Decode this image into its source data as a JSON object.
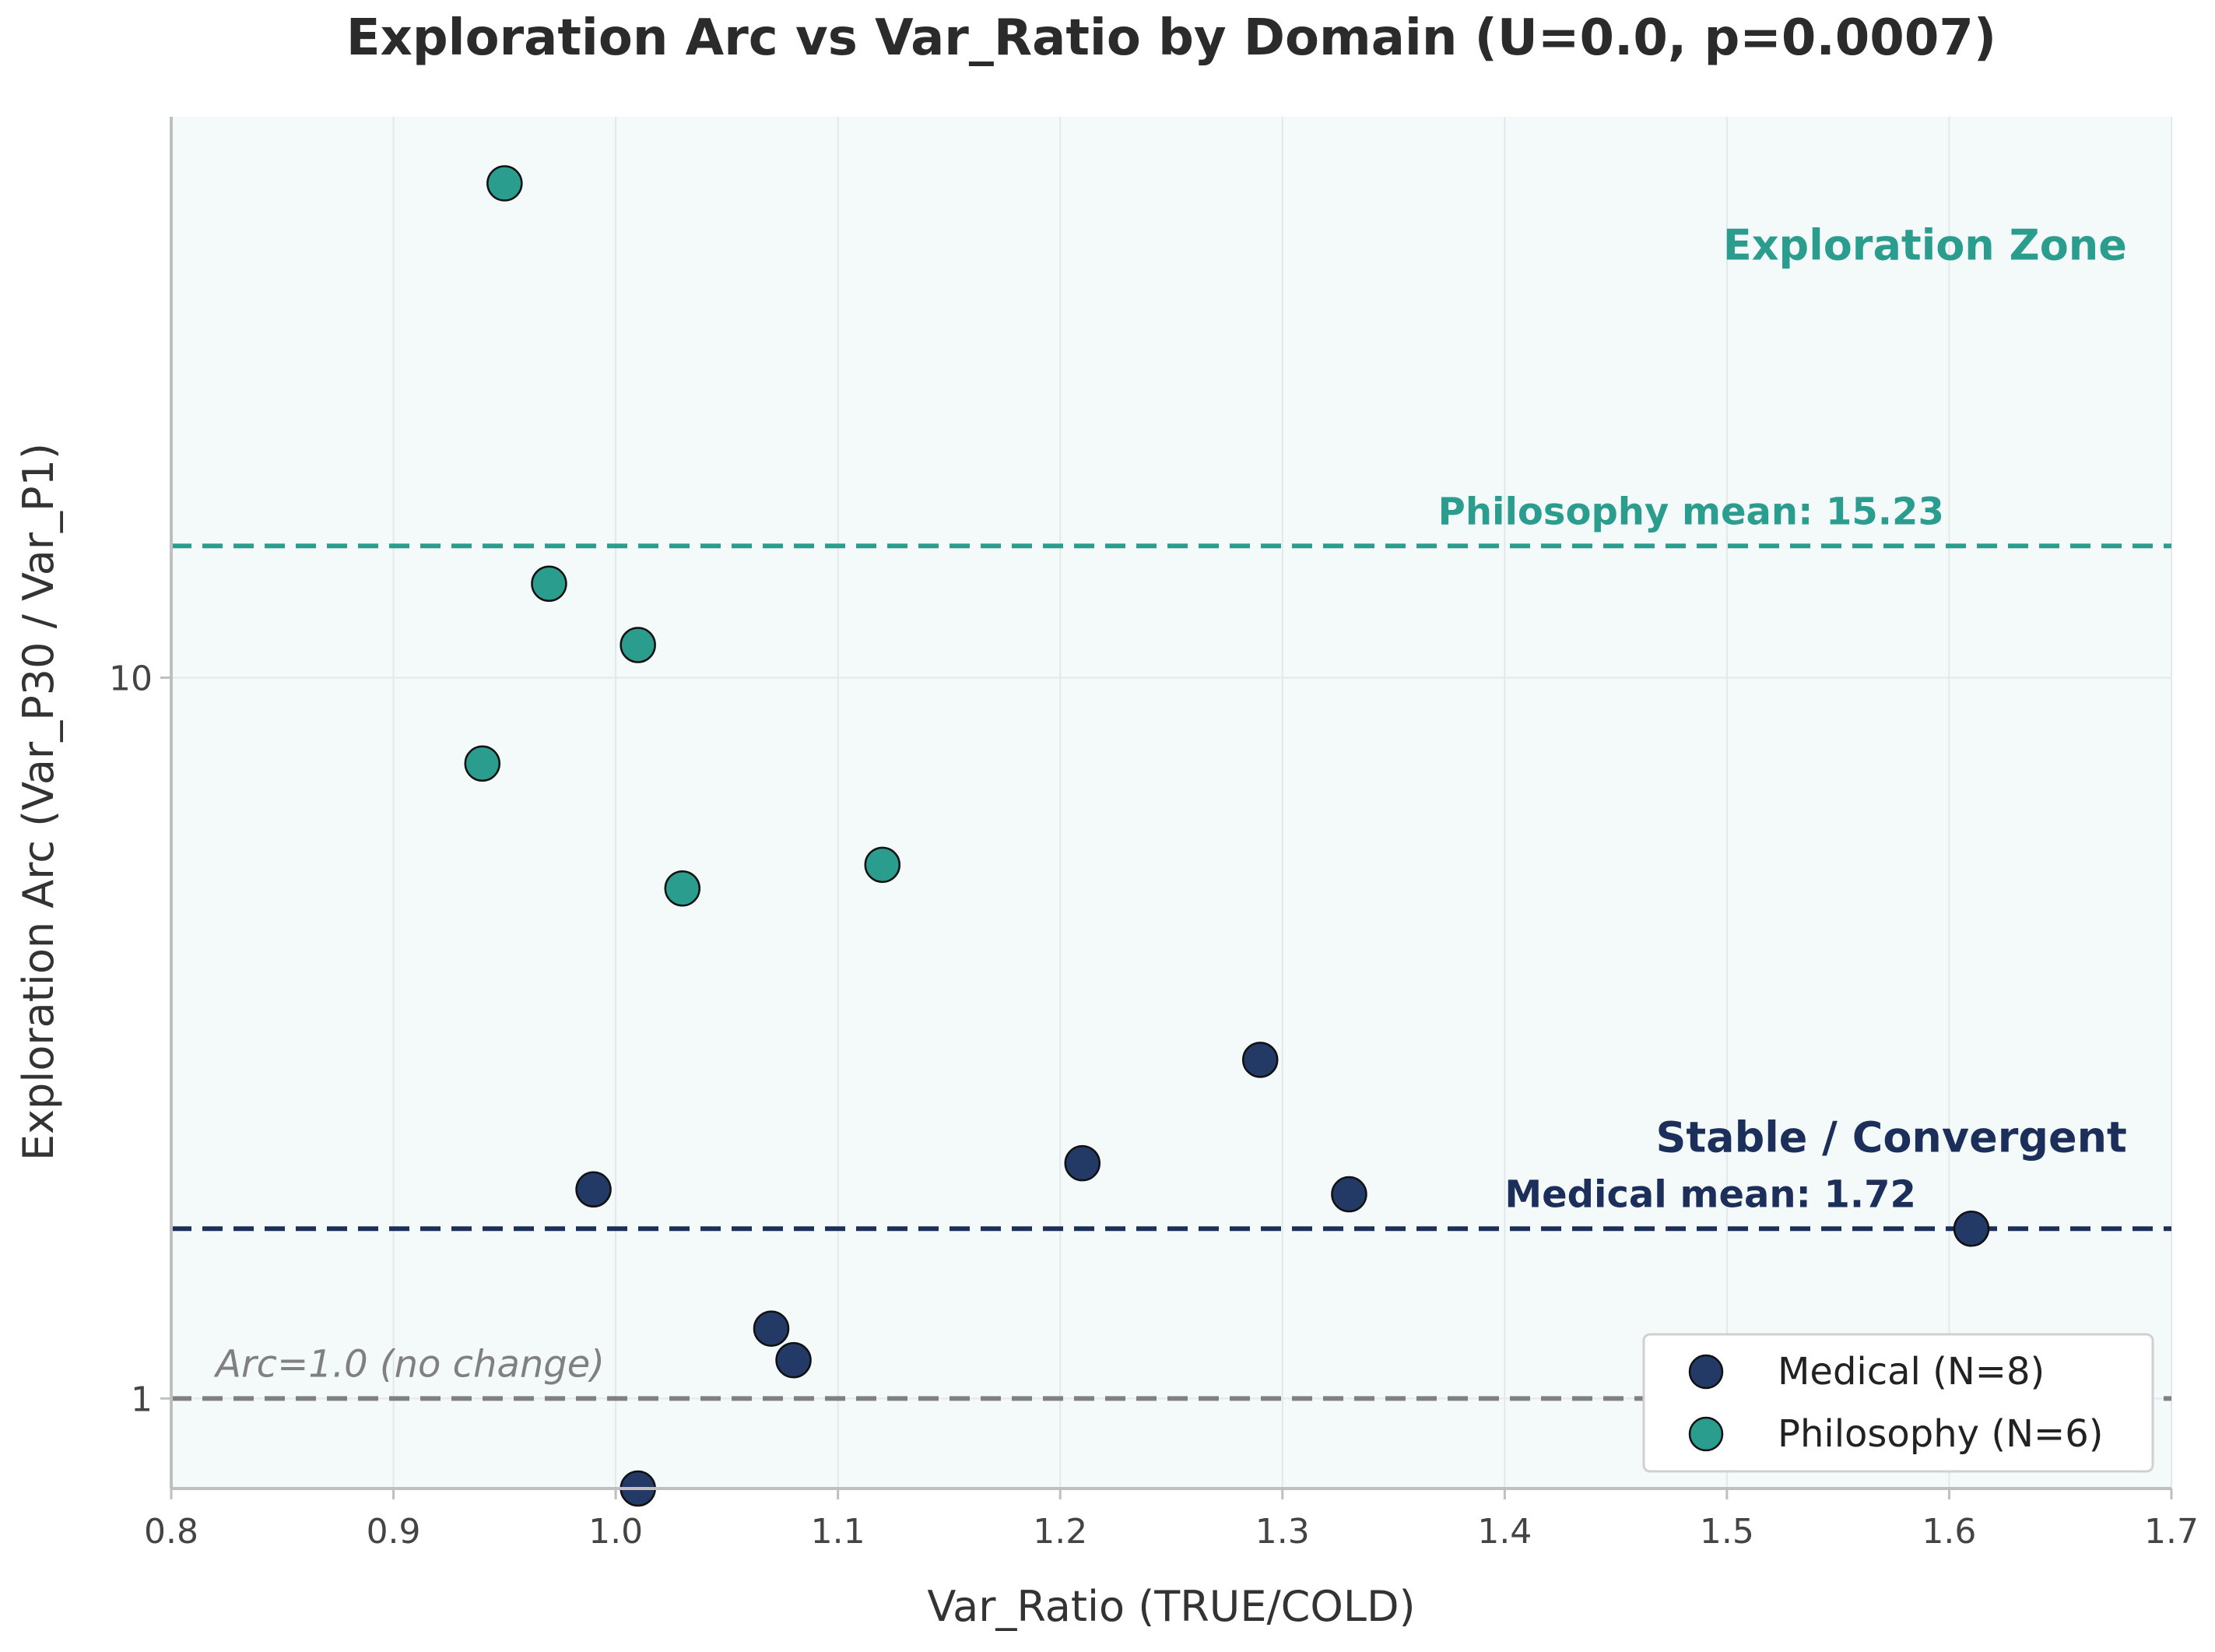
{
  "chart_data": {
    "type": "scatter",
    "title": "Exploration Arc vs Var_Ratio by Domain (U=0.0, p=0.0007)",
    "xlabel": "Var_Ratio (TRUE/COLD)",
    "ylabel": "Exploration Arc (Var_P30 / Var_P1)",
    "xlim": [
      0.8,
      1.7
    ],
    "ylim": [
      0.75,
      60
    ],
    "yscale": "log",
    "x_ticks": [
      0.8,
      0.9,
      1.0,
      1.1,
      1.2,
      1.3,
      1.4,
      1.5,
      1.6,
      1.7
    ],
    "x_tick_labels": [
      "0.8",
      "0.9",
      "1.0",
      "1.1",
      "1.2",
      "1.3",
      "1.4",
      "1.5",
      "1.6",
      "1.7"
    ],
    "y_ticks": [
      1,
      10
    ],
    "y_tick_labels": [
      "1",
      "10"
    ],
    "grid": true,
    "legend_position": "bottom-right",
    "series": [
      {
        "name": "Medical (N=8)",
        "color": "#233a66",
        "points": [
          {
            "x": 0.99,
            "y": 1.95
          },
          {
            "x": 1.01,
            "y": 0.75
          },
          {
            "x": 1.07,
            "y": 1.25
          },
          {
            "x": 1.08,
            "y": 1.13
          },
          {
            "x": 1.21,
            "y": 2.12
          },
          {
            "x": 1.29,
            "y": 2.95
          },
          {
            "x": 1.33,
            "y": 1.92
          },
          {
            "x": 1.61,
            "y": 1.72
          }
        ]
      },
      {
        "name": "Philosophy (N=6)",
        "color": "#2a9d8f",
        "points": [
          {
            "x": 0.94,
            "y": 7.6
          },
          {
            "x": 0.95,
            "y": 48.5
          },
          {
            "x": 0.97,
            "y": 13.5
          },
          {
            "x": 1.01,
            "y": 11.1
          },
          {
            "x": 1.03,
            "y": 5.1
          },
          {
            "x": 1.12,
            "y": 5.5
          }
        ]
      }
    ],
    "reference_lines": [
      {
        "y": 15.23,
        "label": "Philosophy mean: 15.23",
        "color": "#2a9d8f",
        "label_x": 1.37
      },
      {
        "y": 1.72,
        "label": "Medical mean: 1.72",
        "color": "#1b2f5a",
        "label_x": 1.4
      },
      {
        "y": 1.0,
        "label": "Arc=1.0 (no change)",
        "color": "#808080",
        "label_x": 0.82
      }
    ],
    "annotations": [
      {
        "text": "Exploration Zone",
        "x": 1.68,
        "y": 38,
        "color": "#2a9d8f"
      },
      {
        "text": "Stable / Convergent",
        "x": 1.68,
        "y": 2.2,
        "color": "#1b2f5a"
      }
    ]
  }
}
